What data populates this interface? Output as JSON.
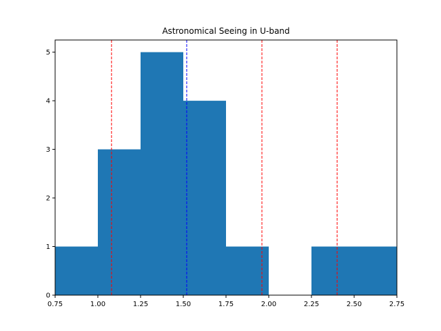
{
  "chart_data": {
    "type": "bar",
    "title": "Astronomical Seeing in U-band",
    "xlabel": "",
    "ylabel": "",
    "xlim": [
      0.75,
      2.75
    ],
    "ylim": [
      0,
      5.25
    ],
    "xticks": [
      "0.75",
      "1.00",
      "1.25",
      "1.50",
      "1.75",
      "2.00",
      "2.25",
      "2.50",
      "2.75"
    ],
    "yticks": [
      "0",
      "1",
      "2",
      "3",
      "4",
      "5"
    ],
    "bins": [
      {
        "start": 0.75,
        "end": 1.0,
        "count": 1
      },
      {
        "start": 1.0,
        "end": 1.25,
        "count": 3
      },
      {
        "start": 1.25,
        "end": 1.5,
        "count": 5
      },
      {
        "start": 1.5,
        "end": 1.75,
        "count": 4
      },
      {
        "start": 1.75,
        "end": 2.0,
        "count": 1
      },
      {
        "start": 2.0,
        "end": 2.25,
        "count": 0
      },
      {
        "start": 2.25,
        "end": 2.5,
        "count": 1
      },
      {
        "start": 2.5,
        "end": 2.75,
        "count": 1
      }
    ],
    "vertical_lines": [
      {
        "x": 1.08,
        "color": "#ff0000",
        "style": "dashed"
      },
      {
        "x": 1.52,
        "color": "#0000ff",
        "style": "dashed"
      },
      {
        "x": 1.96,
        "color": "#ff0000",
        "style": "dashed"
      },
      {
        "x": 2.4,
        "color": "#ff0000",
        "style": "dashed"
      }
    ],
    "bar_color": "#1f77b4",
    "grid": false,
    "legend": "none"
  }
}
